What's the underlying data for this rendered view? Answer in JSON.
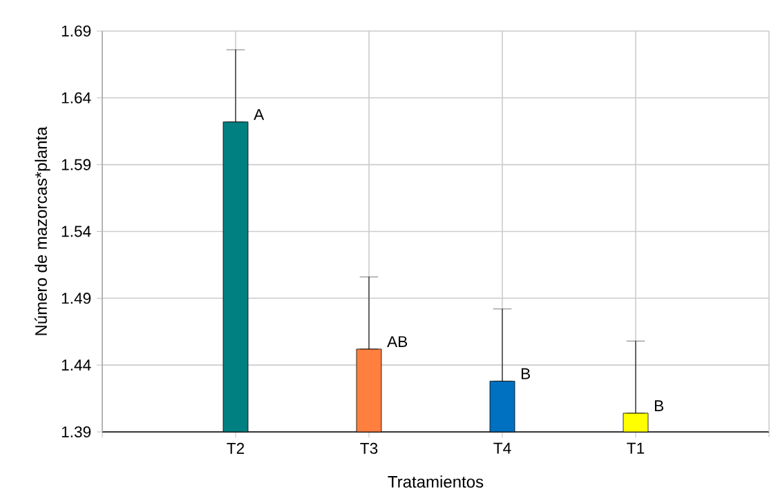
{
  "chart_data": {
    "type": "bar",
    "xlabel": "Tratamientos",
    "ylabel": "Número de mazorcas*planta",
    "categories": [
      "T2",
      "T3",
      "T4",
      "T1"
    ],
    "values": [
      1.622,
      1.452,
      1.428,
      1.404
    ],
    "colors": [
      "#008080",
      "#ff7f3f",
      "#0070c0",
      "#ffff00"
    ],
    "errors": [
      [
        1.622,
        1.676
      ],
      [
        1.452,
        1.506
      ],
      [
        1.428,
        1.482
      ],
      [
        1.404,
        1.458
      ]
    ],
    "ylim": [
      1.39,
      1.69
    ],
    "yticks": [
      1.39,
      1.44,
      1.49,
      1.54,
      1.59,
      1.64,
      1.69
    ],
    "grid": true,
    "annotations": [
      {
        "text": "A",
        "x": "T2",
        "y": 1.622
      },
      {
        "text": "AB",
        "x": "T3",
        "y": 1.452
      },
      {
        "text": "B",
        "x": "T4",
        "y": 1.428
      },
      {
        "text": "B",
        "x": "T1",
        "y": 1.404
      }
    ]
  }
}
